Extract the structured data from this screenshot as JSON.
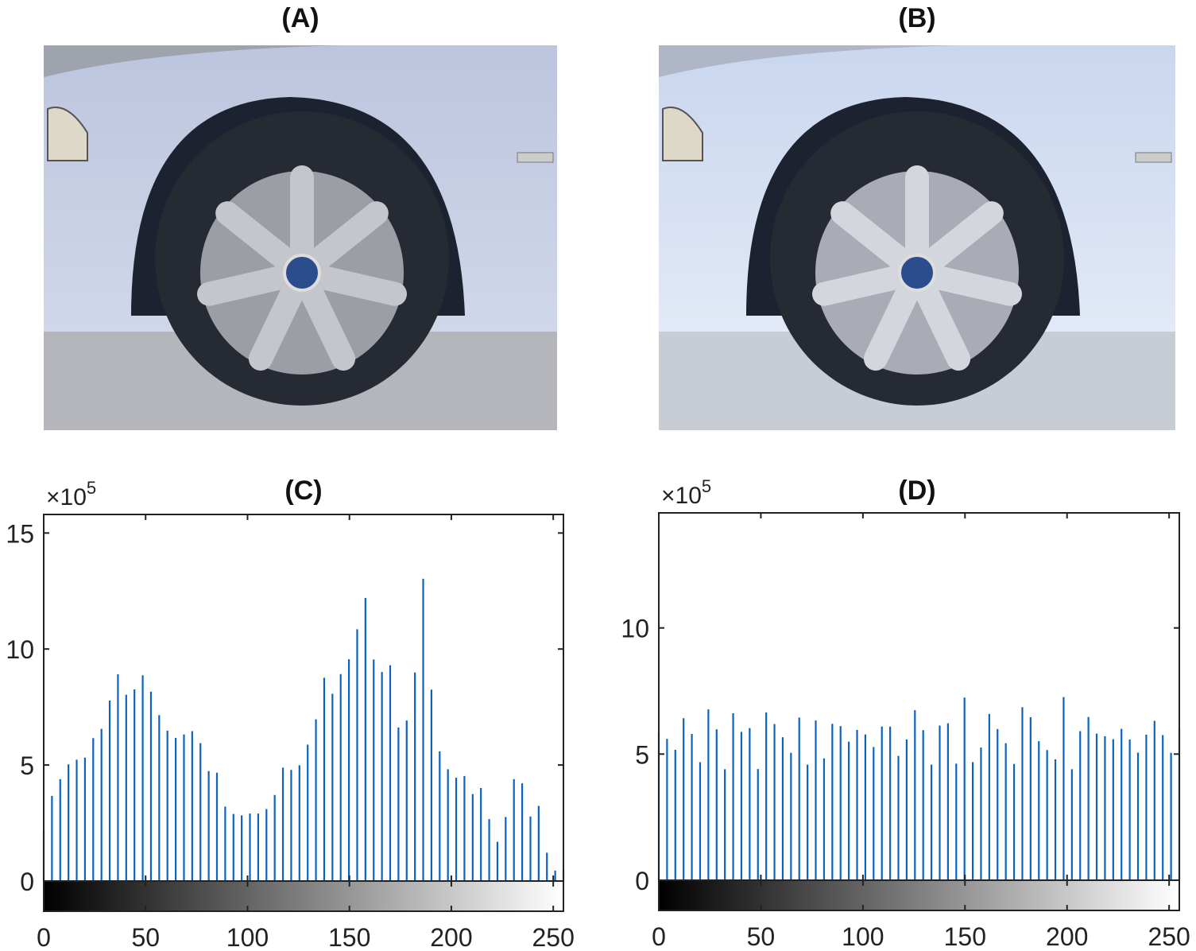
{
  "panels": {
    "a": {
      "title": "(A)"
    },
    "b": {
      "title": "(B)"
    },
    "c": {
      "title": "(C)"
    },
    "d": {
      "title": "(D)"
    }
  },
  "colors": {
    "bar": "#0b63c0",
    "axis": "#222222",
    "colorbar_start": "#000000",
    "colorbar_end": "#ffffff"
  },
  "chart_data": [
    {
      "type": "bar",
      "title": "(C)",
      "exponent_label": "×10^5",
      "exponent_base": "×10",
      "exponent_power": "5",
      "xlim": [
        0,
        255
      ],
      "ylim": [
        0,
        15.8
      ],
      "xticks": [
        0,
        50,
        100,
        150,
        200,
        250
      ],
      "yticks": [
        0,
        5,
        10,
        15
      ],
      "grid": false,
      "colorbar": "grayscale 0-255 below x-axis",
      "bin_count": 64,
      "values": [
        2.17,
        3.67,
        4.39,
        5.03,
        5.23,
        5.32,
        6.16,
        6.56,
        7.78,
        8.91,
        8.03,
        8.26,
        8.87,
        8.16,
        7.15,
        6.48,
        6.17,
        6.32,
        6.46,
        5.94,
        4.74,
        4.67,
        3.21,
        2.89,
        2.83,
        2.91,
        2.91,
        3.1,
        3.71,
        4.89,
        4.79,
        4.99,
        5.88,
        6.97,
        8.76,
        8.07,
        8.92,
        9.56,
        10.85,
        12.2,
        9.55,
        9.01,
        9.3,
        6.62,
        6.92,
        8.99,
        13.03,
        8.25,
        5.59,
        4.82,
        4.45,
        4.53,
        3.75,
        4.01,
        2.67,
        1.69,
        2.76,
        4.39,
        4.21,
        2.78,
        3.24,
        1.22,
        0.45,
        0.5
      ]
    },
    {
      "type": "bar",
      "title": "(D)",
      "exponent_label": "×10^5",
      "exponent_base": "×10",
      "exponent_power": "5",
      "xlim": [
        0,
        255
      ],
      "ylim": [
        0,
        14.56
      ],
      "xticks": [
        0,
        50,
        100,
        150,
        200,
        250
      ],
      "yticks": [
        0,
        5,
        10
      ],
      "grid": false,
      "colorbar": "grayscale 0-255 below x-axis",
      "bin_count": 64,
      "values": [
        5.84,
        5.6,
        5.17,
        6.42,
        5.8,
        4.68,
        6.77,
        5.98,
        4.4,
        6.62,
        5.88,
        6.03,
        4.41,
        6.65,
        6.19,
        5.67,
        5.05,
        6.45,
        4.58,
        6.33,
        4.83,
        6.2,
        6.11,
        5.49,
        5.96,
        5.78,
        5.28,
        6.09,
        6.09,
        4.93,
        5.58,
        6.74,
        5.95,
        4.58,
        6.13,
        6.22,
        4.62,
        7.24,
        4.68,
        5.26,
        6.59,
        5.99,
        5.43,
        4.61,
        6.86,
        6.46,
        5.51,
        5.16,
        4.79,
        7.26,
        4.4,
        5.91,
        6.47,
        5.81,
        5.71,
        5.59,
        6.0,
        5.58,
        5.06,
        5.77,
        6.32,
        5.75,
        5.05,
        6.0
      ]
    }
  ]
}
